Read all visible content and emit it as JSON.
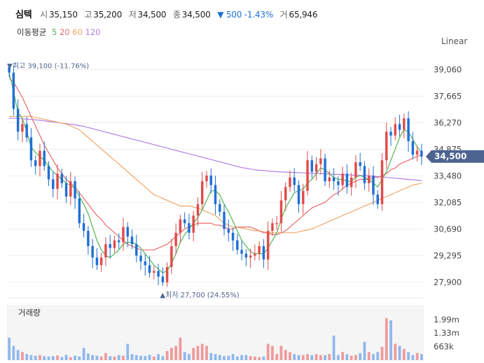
{
  "header": {
    "name": "심텍",
    "open_label": "시",
    "open": "35,150",
    "high_label": "고",
    "high": "35,200",
    "low_label": "저",
    "low": "34,500",
    "close_label": "종",
    "close": "34,500",
    "change": "▼ 500 -1.43%",
    "volume_label": "거",
    "volume": "65,946"
  },
  "ma_legend": {
    "title": "이동평균",
    "p5": "5",
    "p20": "20",
    "p60": "60",
    "p120": "120"
  },
  "scale_button": "Linear",
  "colors": {
    "up": "#e14b4b",
    "down": "#1f6fd6",
    "ma5": "#52b552",
    "ma20": "#e86b6b",
    "ma60": "#f0a768",
    "ma120": "#b27fe6",
    "vol_up": "#f09a9a",
    "vol_down": "#8fb8ec",
    "badge": "#4e6490"
  },
  "chart_data": {
    "type": "candlestick",
    "price_axis": {
      "ticks": [
        39060,
        37665,
        36270,
        34875,
        33480,
        32085,
        30690,
        29295,
        27900
      ],
      "tick_labels": [
        "39,060",
        "37,665",
        "36,270",
        "34,875",
        "33,480",
        "32,085",
        "30,690",
        "29,295",
        "27,900"
      ],
      "range": [
        27300,
        39700
      ]
    },
    "last_price_label": "34,500",
    "high_marker": {
      "text": "▼최고 39,100 (-11.76%)",
      "value": 39100,
      "index": 0
    },
    "low_marker": {
      "text": "▲최저 27,700 (24.55%)",
      "value": 27700,
      "index": 35
    },
    "volume_panel": {
      "title": "거래량",
      "tick_labels": [
        "1.99m",
        "1.33m",
        "663k"
      ],
      "ticks": [
        1990000,
        1330000,
        663000
      ],
      "max": 2700000
    },
    "closes": [
      38900,
      37000,
      35800,
      36200,
      35500,
      34300,
      34000,
      34800,
      34000,
      33300,
      32800,
      33600,
      33100,
      32400,
      33200,
      32300,
      31000,
      30600,
      29800,
      29200,
      28800,
      29200,
      29900,
      29700,
      30100,
      30000,
      30800,
      30300,
      29900,
      29300,
      29000,
      28800,
      28400,
      28500,
      28200,
      27900,
      28700,
      29800,
      30500,
      31200,
      31000,
      30500,
      31400,
      32000,
      33200,
      33500,
      33000,
      32000,
      31600,
      30700,
      30500,
      30100,
      29600,
      29400,
      29200,
      29300,
      29400,
      29800,
      29100,
      30600,
      31000,
      31000,
      32200,
      32900,
      33400,
      33000,
      32000,
      32700,
      34300,
      33700,
      34100,
      34400,
      33200,
      33400,
      33200,
      33000,
      33600,
      32900,
      33400,
      34200,
      34000,
      33100,
      33500,
      32500,
      32000,
      34300,
      35800,
      35600,
      36200,
      35900,
      36500,
      35300,
      34600,
      34800,
      34500
    ],
    "ma5": [
      38900,
      37900,
      36800,
      36500,
      35800,
      35000,
      34700,
      34500,
      34300,
      34000,
      33700,
      33500,
      33300,
      33100,
      33000,
      32800,
      32400,
      32000,
      31500,
      30800,
      30100,
      29600,
      29300,
      29200,
      29400,
      29600,
      29900,
      30000,
      30000,
      29900,
      29700,
      29400,
      29100,
      28800,
      28600,
      28400,
      28500,
      28900,
      29400,
      30000,
      30400,
      30700,
      31000,
      31300,
      31700,
      32200,
      32700,
      32700,
      32500,
      32000,
      31600,
      31100,
      30600,
      30100,
      29800,
      29500,
      29400,
      29400,
      29400,
      29700,
      30100,
      30500,
      31200,
      31800,
      32200,
      32600,
      32700,
      32800,
      33100,
      33300,
      33600,
      33900,
      33800,
      33600,
      33400,
      33300,
      33300,
      33200,
      33200,
      33400,
      33500,
      33400,
      33300,
      33100,
      32900,
      33300,
      33700,
      34300,
      34900,
      35500,
      35900,
      35800,
      35400,
      35000,
      34700
    ],
    "ma20": [
      38600,
      38400,
      38000,
      37600,
      37100,
      36600,
      36100,
      35600,
      35100,
      34700,
      34300,
      33900,
      33600,
      33300,
      33100,
      32900,
      32600,
      32300,
      32000,
      31700,
      31400,
      31200,
      30900,
      30700,
      30500,
      30300,
      30100,
      29900,
      29800,
      29700,
      29600,
      29600,
      29600,
      29600,
      29700,
      29800,
      29900,
      30100,
      30300,
      30500,
      30700,
      30800,
      30900,
      31000,
      31000,
      31000,
      31000,
      30900,
      30900,
      30800,
      30700,
      30700,
      30800,
      30800,
      30800,
      30800,
      30700,
      30600,
      30500,
      30500,
      30400,
      30400,
      30500,
      30600,
      30800,
      31000,
      31200,
      31400,
      31600,
      31800,
      31900,
      32000,
      32100,
      32300,
      32500,
      32600,
      32800,
      33000,
      33100,
      33200,
      33300,
      33300,
      33300,
      33400,
      33400,
      33500,
      33600,
      33800,
      33900,
      34100,
      34200,
      34300,
      34400,
      34500,
      34600
    ],
    "ma60": [
      36600,
      36600,
      36600,
      36600,
      36600,
      36600,
      36550,
      36500,
      36450,
      36400,
      36350,
      36300,
      36250,
      36200,
      36100,
      36000,
      35900,
      35700,
      35500,
      35300,
      35100,
      34900,
      34700,
      34500,
      34300,
      34100,
      33900,
      33700,
      33500,
      33300,
      33100,
      32900,
      32700,
      32500,
      32400,
      32300,
      32200,
      32100,
      32000,
      31900,
      31900,
      31900,
      31850,
      31800,
      31700,
      31600,
      31500,
      31400,
      31200,
      31000,
      30900,
      30800,
      30800,
      30750,
      30700,
      30650,
      30600,
      30600,
      30550,
      30500,
      30500,
      30500,
      30500,
      30500,
      30500,
      30500,
      30550,
      30600,
      30650,
      30700,
      30800,
      30900,
      31000,
      31100,
      31200,
      31300,
      31400,
      31500,
      31600,
      31700,
      31800,
      31900,
      32000,
      32100,
      32200,
      32300,
      32400,
      32500,
      32600,
      32700,
      32800,
      32900,
      33000,
      33050,
      33100
    ],
    "ma120": [
      36500,
      36500,
      36500,
      36480,
      36460,
      36440,
      36420,
      36400,
      36370,
      36340,
      36310,
      36280,
      36250,
      36220,
      36190,
      36160,
      36120,
      36080,
      36020,
      35960,
      35900,
      35840,
      35780,
      35720,
      35660,
      35600,
      35540,
      35480,
      35420,
      35360,
      35300,
      35240,
      35180,
      35120,
      35060,
      35000,
      34940,
      34880,
      34820,
      34760,
      34700,
      34640,
      34580,
      34520,
      34460,
      34400,
      34340,
      34280,
      34220,
      34160,
      34100,
      34040,
      33980,
      33920,
      33880,
      33840,
      33800,
      33780,
      33760,
      33740,
      33720,
      33700,
      33690,
      33680,
      33670,
      33660,
      33650,
      33640,
      33630,
      33620,
      33610,
      33600,
      33590,
      33580,
      33570,
      33560,
      33550,
      33540,
      33530,
      33520,
      33510,
      33500,
      33480,
      33460,
      33440,
      33420,
      33400,
      33380,
      33360,
      33340,
      33320,
      33300,
      33280,
      33260,
      33240
    ],
    "volumes": [
      1100000,
      700000,
      500000,
      400000,
      300000,
      250000,
      220000,
      250000,
      200000,
      180000,
      200000,
      230000,
      160000,
      260000,
      150000,
      220000,
      180000,
      600000,
      330000,
      250000,
      220000,
      180000,
      350000,
      200000,
      180000,
      250000,
      220000,
      800000,
      300000,
      250000,
      220000,
      200000,
      260000,
      180000,
      300000,
      200000,
      450000,
      600000,
      700000,
      1100000,
      400000,
      300000,
      600000,
      700000,
      800000,
      700000,
      350000,
      300000,
      250000,
      200000,
      220000,
      300000,
      180000,
      250000,
      250000,
      200000,
      180000,
      150000,
      180000,
      800000,
      700000,
      300000,
      700000,
      500000,
      400000,
      300000,
      250000,
      250000,
      300000,
      250000,
      300000,
      250000,
      250000,
      300000,
      1200000,
      250000,
      400000,
      300000,
      220000,
      250000,
      350000,
      900000,
      400000,
      300000,
      400000,
      650000,
      2050000,
      1950000,
      800000,
      700000,
      550000,
      400000,
      250000,
      350000,
      300000
    ]
  }
}
